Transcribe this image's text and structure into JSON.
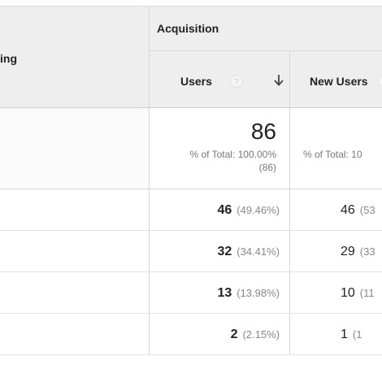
{
  "header": {
    "dimension_label_partial": "ing",
    "group_label": "Acquisition",
    "columns": {
      "users": {
        "label": "Users",
        "help_glyph": "?",
        "sort_glyph": "↓"
      },
      "new_users": {
        "label": "New Users"
      }
    }
  },
  "totals": {
    "users": {
      "value": "86",
      "pct_text": "% of Total: 100.00%",
      "count_text": "(86)"
    },
    "new_users": {
      "pct_text": "% of Total: 10"
    }
  },
  "rows": [
    {
      "users": "46",
      "users_pct": "(49.46%)",
      "new_users": "46",
      "new_users_pct": "(53"
    },
    {
      "users": "32",
      "users_pct": "(34.41%)",
      "new_users": "29",
      "new_users_pct": "(33"
    },
    {
      "users": "13",
      "users_pct": "(13.98%)",
      "new_users": "10",
      "new_users_pct": "(11"
    },
    {
      "users": "2",
      "users_pct": "(2.15%)",
      "new_users": "1",
      "new_users_pct": "(1"
    }
  ],
  "colors": {
    "header_bg": "#eeeeee",
    "border": "#d6d6d6",
    "muted_text": "#777777"
  }
}
